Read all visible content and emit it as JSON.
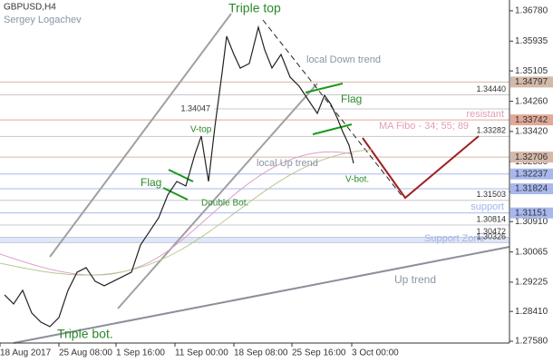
{
  "chart_data": {
    "type": "line",
    "symbol": "GBPUSD,H4",
    "author": "Sergey Logachev",
    "annotations": [
      "Triple top",
      "local Down trend",
      "Flag",
      "resistant",
      "MA Fibo - 34; 55; 89",
      "local Up trend",
      "V-bot.",
      "V-top",
      "Flag",
      "Double Bot.",
      "support",
      "Support Zone",
      "Up trend",
      "Triple bot."
    ],
    "x": [
      5,
      15,
      25,
      35,
      45,
      55,
      65,
      75,
      85,
      95,
      105,
      115,
      125,
      135,
      145,
      155,
      165,
      175,
      185,
      195,
      205,
      215,
      222,
      230,
      237,
      245,
      250,
      258,
      265,
      275,
      285,
      292,
      300,
      310,
      320,
      330,
      340,
      350,
      358,
      365,
      372,
      378,
      385,
      390
    ],
    "series": [
      {
        "name": "GBPUSD",
        "color": "#222222",
        "values": [
          1.2887,
          1.28618,
          1.28997,
          1.28365,
          1.28113,
          1.27986,
          1.28239,
          1.28997,
          1.29502,
          1.29628,
          1.29249,
          1.29123,
          1.29249,
          1.29376,
          1.29502,
          1.3026,
          1.30639,
          1.31018,
          1.31649,
          1.32028,
          1.31902,
          1.32786,
          1.33291,
          1.32028,
          1.33544,
          1.35059,
          1.3607,
          1.35564,
          1.35185,
          1.35312,
          1.36322,
          1.35691,
          1.35185,
          1.35564,
          1.34933,
          1.3468,
          1.34301,
          1.33922,
          1.34428,
          1.34175,
          1.33796,
          1.33417,
          1.33038,
          1.32533
        ]
      }
    ],
    "xlim": [
      0,
      562
    ],
    "xticks": [
      {
        "value": 0,
        "label": "18 Aug 2017"
      },
      {
        "value": 65,
        "label": "25 Aug 08:00"
      },
      {
        "value": 128,
        "label": "1 Sep 16:00"
      },
      {
        "value": 193,
        "label": "11 Sep 00:00"
      },
      {
        "value": 258,
        "label": "18 Sep 08:00"
      },
      {
        "value": 322,
        "label": "25 Sep 16:00"
      },
      {
        "value": 388,
        "label": "3 Oct 00:00"
      }
    ],
    "ylim": [
      1.2753,
      1.3708
    ],
    "yticks": [
      {
        "value": 1.3678,
        "label": "1.36780"
      },
      {
        "value": 1.35935,
        "label": "1.35935"
      },
      {
        "value": 1.35105,
        "label": "1.35105"
      },
      {
        "value": 1.3426,
        "label": "1.34260"
      },
      {
        "value": 1.3342,
        "label": "1.33420"
      },
      {
        "value": 1.3258,
        "label": "1.32580"
      },
      {
        "value": 1.3174,
        "label": "1.31740"
      },
      {
        "value": 1.3091,
        "label": "1.30910"
      },
      {
        "value": 1.30065,
        "label": "1.30065"
      },
      {
        "value": 1.29225,
        "label": "1.29225"
      },
      {
        "value": 1.2841,
        "label": "1.28410"
      },
      {
        "value": 1.2758,
        "label": "1.27580"
      }
    ],
    "axis_levels": [
      {
        "value": 1.34797,
        "color": "#d4b8a8"
      },
      {
        "value": 1.33742,
        "color": "#e2a898"
      },
      {
        "value": 1.32706,
        "color": "#d4b8a8"
      },
      {
        "value": 1.32237,
        "color": "#a8b8ee"
      },
      {
        "value": 1.31824,
        "color": "#a8b8ee"
      },
      {
        "value": 1.31151,
        "color": "#a8b8ee"
      }
    ],
    "chart_levels": [
      {
        "value": 1.3444,
        "label": "1.34440"
      },
      1.33282,
      1.31503,
      1.30814,
      1.30472,
      1.30326
    ],
    "marker_levels": [
      1.34047
    ],
    "support_zone": [
      1.30326,
      1.30472
    ]
  }
}
